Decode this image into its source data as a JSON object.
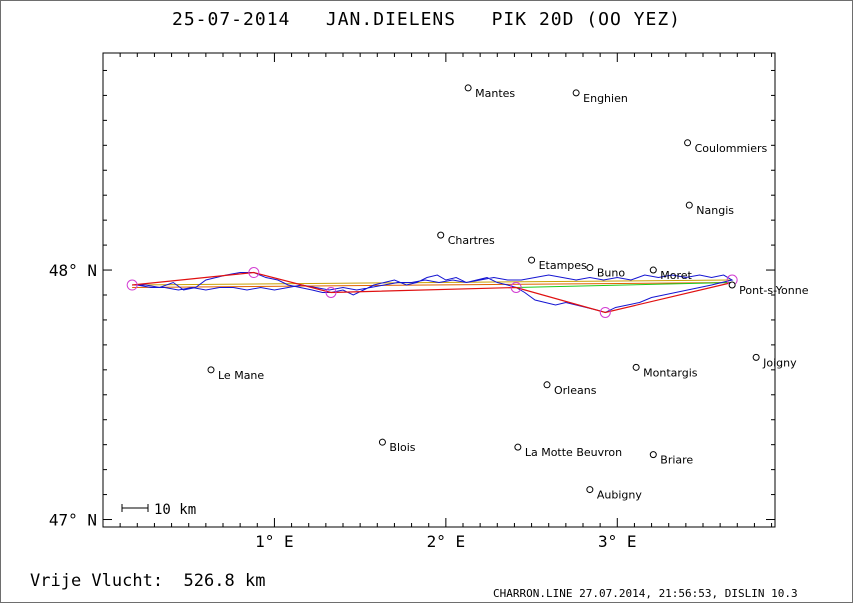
{
  "title": "25-07-2014   JAN.DIELENS   PIK 20D (OO YEZ)",
  "map": {
    "extent": {
      "lon": [
        0.0,
        3.92
      ],
      "lat": [
        46.97,
        48.87
      ]
    },
    "lat_ticks": [
      {
        "value": 47.0,
        "label": "47° N"
      },
      {
        "value": 48.0,
        "label": "48° N"
      }
    ],
    "lon_ticks": [
      {
        "value": 1.0,
        "label": "1° E"
      },
      {
        "value": 2.0,
        "label": "2° E"
      },
      {
        "value": 3.0,
        "label": "3° E"
      }
    ],
    "scale_bar": {
      "label": "10 km",
      "km": 10
    },
    "cities": [
      {
        "name": "Mantes",
        "lon": 2.13,
        "lat": 48.73
      },
      {
        "name": "Enghien",
        "lon": 2.76,
        "lat": 48.71
      },
      {
        "name": "Coulommiers",
        "lon": 3.41,
        "lat": 48.51
      },
      {
        "name": "Nangis",
        "lon": 3.42,
        "lat": 48.26
      },
      {
        "name": "Chartres",
        "lon": 1.97,
        "lat": 48.14
      },
      {
        "name": "Etampes",
        "lon": 2.5,
        "lat": 48.04
      },
      {
        "name": "Buno",
        "lon": 2.84,
        "lat": 48.01
      },
      {
        "name": "Moret",
        "lon": 3.21,
        "lat": 48.0
      },
      {
        "name": "Pont-s-Yonne",
        "lon": 3.67,
        "lat": 47.94
      },
      {
        "name": "Joigny",
        "lon": 3.81,
        "lat": 47.65
      },
      {
        "name": "Le Mane",
        "lon": 0.63,
        "lat": 47.6
      },
      {
        "name": "Montargis",
        "lon": 3.11,
        "lat": 47.61
      },
      {
        "name": "Orleans",
        "lon": 2.59,
        "lat": 47.54
      },
      {
        "name": "Blois",
        "lon": 1.63,
        "lat": 47.31
      },
      {
        "name": "La Motte Beuvron",
        "lon": 2.42,
        "lat": 47.29
      },
      {
        "name": "Briare",
        "lon": 3.21,
        "lat": 47.26
      },
      {
        "name": "Aubigny",
        "lon": 2.84,
        "lat": 47.12
      }
    ],
    "turnpoints": [
      {
        "lon": 0.17,
        "lat": 47.94
      },
      {
        "lon": 0.88,
        "lat": 47.99
      },
      {
        "lon": 1.33,
        "lat": 47.91
      },
      {
        "lon": 2.41,
        "lat": 47.93
      },
      {
        "lon": 2.93,
        "lat": 47.83
      },
      {
        "lon": 3.67,
        "lat": 47.96
      }
    ],
    "optimized_route": [
      {
        "lon": 0.17,
        "lat": 47.94
      },
      {
        "lon": 0.88,
        "lat": 47.99
      },
      {
        "lon": 1.33,
        "lat": 47.91
      },
      {
        "lon": 2.41,
        "lat": 47.93
      },
      {
        "lon": 2.93,
        "lat": 47.83
      },
      {
        "lon": 3.67,
        "lat": 47.95
      }
    ],
    "outbound_leg": [
      {
        "lon": 0.17,
        "lat": 47.94
      },
      {
        "lon": 3.67,
        "lat": 47.96
      }
    ],
    "return_leg": [
      {
        "lon": 3.67,
        "lat": 47.95
      },
      {
        "lon": 0.17,
        "lat": 47.93
      }
    ],
    "green_leg": [
      {
        "lon": 2.41,
        "lat": 47.93
      },
      {
        "lon": 3.67,
        "lat": 47.95
      }
    ],
    "track": [
      [
        0.17,
        47.94
      ],
      [
        0.25,
        47.94
      ],
      [
        0.33,
        47.93
      ],
      [
        0.41,
        47.95
      ],
      [
        0.47,
        47.92
      ],
      [
        0.54,
        47.93
      ],
      [
        0.6,
        47.96
      ],
      [
        0.66,
        47.97
      ],
      [
        0.72,
        47.98
      ],
      [
        0.8,
        47.99
      ],
      [
        0.88,
        47.99
      ],
      [
        0.95,
        47.97
      ],
      [
        1.02,
        47.96
      ],
      [
        1.08,
        47.94
      ],
      [
        1.15,
        47.93
      ],
      [
        1.22,
        47.92
      ],
      [
        1.28,
        47.91
      ],
      [
        1.33,
        47.91
      ],
      [
        1.4,
        47.92
      ],
      [
        1.46,
        47.9
      ],
      [
        1.52,
        47.92
      ],
      [
        1.58,
        47.94
      ],
      [
        1.64,
        47.95
      ],
      [
        1.7,
        47.96
      ],
      [
        1.77,
        47.94
      ],
      [
        1.83,
        47.95
      ],
      [
        1.89,
        47.97
      ],
      [
        1.95,
        47.98
      ],
      [
        2.0,
        47.96
      ],
      [
        2.06,
        47.97
      ],
      [
        2.12,
        47.95
      ],
      [
        2.18,
        47.96
      ],
      [
        2.24,
        47.97
      ],
      [
        2.3,
        47.95
      ],
      [
        2.36,
        47.94
      ],
      [
        2.41,
        47.93
      ],
      [
        2.46,
        47.91
      ],
      [
        2.52,
        47.88
      ],
      [
        2.58,
        47.87
      ],
      [
        2.64,
        47.86
      ],
      [
        2.7,
        47.87
      ],
      [
        2.76,
        47.86
      ],
      [
        2.82,
        47.85
      ],
      [
        2.88,
        47.84
      ],
      [
        2.93,
        47.83
      ],
      [
        2.99,
        47.85
      ],
      [
        3.06,
        47.86
      ],
      [
        3.13,
        47.87
      ],
      [
        3.2,
        47.89
      ],
      [
        3.27,
        47.9
      ],
      [
        3.34,
        47.91
      ],
      [
        3.41,
        47.92
      ],
      [
        3.48,
        47.93
      ],
      [
        3.55,
        47.94
      ],
      [
        3.61,
        47.95
      ],
      [
        3.67,
        47.96
      ],
      [
        3.62,
        47.98
      ],
      [
        3.55,
        47.97
      ],
      [
        3.48,
        47.98
      ],
      [
        3.4,
        47.97
      ],
      [
        3.32,
        47.98
      ],
      [
        3.24,
        47.97
      ],
      [
        3.16,
        47.98
      ],
      [
        3.08,
        47.96
      ],
      [
        3.0,
        47.97
      ],
      [
        2.92,
        47.96
      ],
      [
        2.84,
        47.97
      ],
      [
        2.76,
        47.96
      ],
      [
        2.68,
        47.97
      ],
      [
        2.6,
        47.98
      ],
      [
        2.52,
        47.97
      ],
      [
        2.44,
        47.96
      ],
      [
        2.36,
        47.96
      ],
      [
        2.28,
        47.97
      ],
      [
        2.2,
        47.96
      ],
      [
        2.12,
        47.95
      ],
      [
        2.04,
        47.96
      ],
      [
        1.96,
        47.95
      ],
      [
        1.88,
        47.96
      ],
      [
        1.8,
        47.95
      ],
      [
        1.72,
        47.95
      ],
      [
        1.64,
        47.94
      ],
      [
        1.56,
        47.93
      ],
      [
        1.48,
        47.92
      ],
      [
        1.4,
        47.93
      ],
      [
        1.32,
        47.92
      ],
      [
        1.24,
        47.93
      ],
      [
        1.16,
        47.94
      ],
      [
        1.08,
        47.93
      ],
      [
        1.0,
        47.92
      ],
      [
        0.92,
        47.93
      ],
      [
        0.84,
        47.92
      ],
      [
        0.76,
        47.93
      ],
      [
        0.68,
        47.93
      ],
      [
        0.6,
        47.92
      ],
      [
        0.52,
        47.93
      ],
      [
        0.44,
        47.92
      ],
      [
        0.36,
        47.93
      ],
      [
        0.28,
        47.93
      ],
      [
        0.2,
        47.94
      ],
      [
        0.17,
        47.94
      ]
    ],
    "colors": {
      "track": "#1414d2",
      "route": "#e01010",
      "turnpoint": "#d23cd2",
      "outbound": "#c8a000",
      "return": "#e06000",
      "green": "#1ecb1e",
      "axis": "#000000"
    }
  },
  "footer": {
    "free_flight_label": "Vrije Vlucht:",
    "free_flight_value": "526.8 km",
    "software": "CHARRON.LINE 27.07.2014, 21:56:53, DISLIN 10.3"
  }
}
